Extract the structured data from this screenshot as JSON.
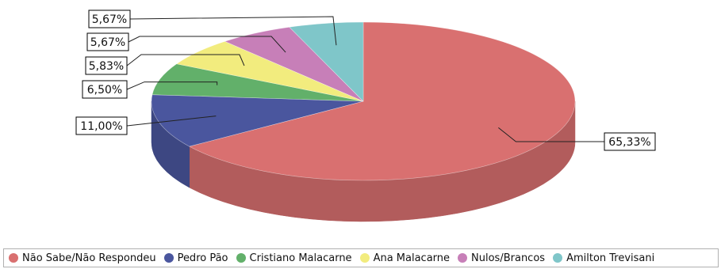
{
  "chart_data": {
    "type": "pie",
    "title": "",
    "slices": [
      {
        "name": "Não Sabe/Não Respondeu",
        "value": 65.33,
        "label": "65,33%",
        "color": "#d97070"
      },
      {
        "name": "Pedro Pão",
        "value": 11.0,
        "label": "11,00%",
        "color": "#4a569e"
      },
      {
        "name": "Cristiano Malacarne",
        "value": 6.5,
        "label": "6,50%",
        "color": "#62b06a"
      },
      {
        "name": "Ana Malacarne",
        "value": 5.83,
        "label": "5,83%",
        "color": "#f2ec7e"
      },
      {
        "name": "Nulos/Brancos",
        "value": 5.67,
        "label": "5,67%",
        "color": "#c77fb8"
      },
      {
        "name": "Amilton Trevisani",
        "value": 5.67,
        "label": "5,67%",
        "color": "#7fc6c9"
      }
    ],
    "legend_position": "bottom",
    "style": "3d"
  }
}
